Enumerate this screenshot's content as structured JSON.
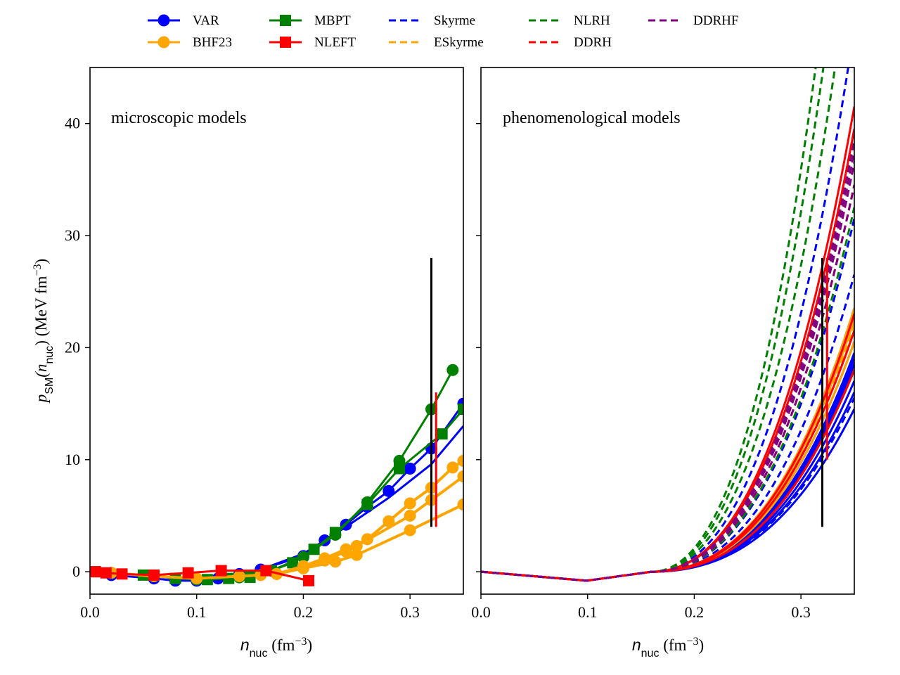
{
  "legend": {
    "entries": [
      {
        "label": "VAR",
        "color": "#0000ff",
        "style": "line-marker",
        "marker": "circle"
      },
      {
        "label": "BHF23",
        "color": "#ffa500",
        "style": "line-marker",
        "marker": "circle"
      },
      {
        "label": "MBPT",
        "color": "#008000",
        "style": "line-marker",
        "marker": "square"
      },
      {
        "label": "NLEFT",
        "color": "#ff0000",
        "style": "line-marker",
        "marker": "square"
      },
      {
        "label": "Skyrme",
        "color": "#0000ff",
        "style": "dashed"
      },
      {
        "label": "ESkyrme",
        "color": "#ffa500",
        "style": "dashed"
      },
      {
        "label": "NLRH",
        "color": "#008000",
        "style": "dashed"
      },
      {
        "label": "DDRH",
        "color": "#ff0000",
        "style": "dashed"
      },
      {
        "label": "DDRHF",
        "color": "#800080",
        "style": "dashed"
      }
    ],
    "placement": "top-center, above panels, 5 columns"
  },
  "y_label": {
    "main": "p",
    "sub1": "SM",
    "mid": "(n",
    "sub2": "nuc",
    "tail": ") (MeV fm",
    "sup": "−3",
    "end": ")"
  },
  "x_label": {
    "main": "n",
    "sub": "nuc",
    "mid": " (fm",
    "sup": "−3",
    "end": ")"
  },
  "chart_data": [
    {
      "type": "line",
      "panel": "left",
      "annotation": "microscopic models",
      "xlim": [
        0.0,
        0.35
      ],
      "ylim": [
        -2,
        45
      ],
      "xticks": [
        0.0,
        0.1,
        0.2,
        0.3
      ],
      "xtick_labels": [
        "0.0",
        "0.1",
        "0.2",
        "0.3"
      ],
      "yticks": [
        0,
        10,
        20,
        30,
        40
      ],
      "ytick_labels": [
        "0",
        "10",
        "20",
        "30",
        "40"
      ],
      "grid": false,
      "series": [
        {
          "name": "VAR",
          "color": "#0000ff",
          "marker": "circle",
          "x": [
            0.02,
            0.06,
            0.08,
            0.1,
            0.12,
            0.14,
            0.16,
            0.2,
            0.22,
            0.24,
            0.26,
            0.28,
            0.3,
            0.32,
            0.35
          ],
          "y": [
            -0.3,
            -0.6,
            -0.8,
            -0.8,
            -0.6,
            -0.2,
            0.2,
            1.4,
            2.8,
            4.2,
            5.8,
            7.2,
            9.2,
            11.0,
            15.0
          ]
        },
        {
          "name": "VAR",
          "color": "#0000ff",
          "marker": "none",
          "x": [
            0.16,
            0.2,
            0.24,
            0.28,
            0.32,
            0.35
          ],
          "y": [
            0.2,
            1.6,
            4.0,
            6.6,
            9.6,
            13.0
          ]
        },
        {
          "name": "MBPT",
          "color": "#008000",
          "marker": "circle",
          "x": [
            0.02,
            0.06,
            0.1,
            0.14,
            0.17,
            0.2,
            0.23,
            0.26,
            0.29,
            0.32,
            0.34
          ],
          "y": [
            -0.1,
            -0.4,
            -0.7,
            -0.5,
            0.1,
            1.3,
            3.3,
            6.2,
            9.9,
            14.5,
            18.0
          ]
        },
        {
          "name": "MBPT",
          "color": "#008000",
          "marker": "square",
          "x": [
            0.005,
            0.05,
            0.08,
            0.11,
            0.13,
            0.15,
            0.17,
            0.19,
            0.21,
            0.23,
            0.26,
            0.29,
            0.33,
            0.35
          ],
          "y": [
            0.0,
            -0.3,
            -0.6,
            -0.7,
            -0.6,
            -0.5,
            0.1,
            0.8,
            2.0,
            3.5,
            6.0,
            9.2,
            12.3,
            14.5
          ]
        },
        {
          "name": "BHF23",
          "color": "#ffa500",
          "marker": "circle",
          "x": [
            0.02,
            0.06,
            0.1,
            0.14,
            0.16,
            0.175,
            0.2,
            0.22,
            0.24,
            0.26,
            0.28,
            0.3,
            0.32,
            0.34,
            0.35
          ],
          "y": [
            -0.1,
            -0.4,
            -0.6,
            -0.4,
            -0.3,
            -0.2,
            0.5,
            1.2,
            2.0,
            2.9,
            4.5,
            6.1,
            7.5,
            9.3,
            9.9
          ]
        },
        {
          "name": "BHF23",
          "color": "#ffa500",
          "marker": "circle",
          "x": [
            0.175,
            0.2,
            0.22,
            0.24,
            0.25,
            0.3,
            0.32,
            0.35
          ],
          "y": [
            -0.2,
            0.4,
            1.0,
            1.8,
            2.3,
            5.0,
            6.4,
            8.5
          ]
        },
        {
          "name": "BHF23",
          "color": "#ffa500",
          "marker": "circle",
          "x": [
            0.175,
            0.2,
            0.23,
            0.25,
            0.3,
            0.35
          ],
          "y": [
            -0.2,
            0.3,
            0.9,
            1.5,
            3.7,
            6.0
          ]
        },
        {
          "name": "NLEFT",
          "color": "#ff0000",
          "marker": "square",
          "x": [
            0.005,
            0.015,
            0.03,
            0.06,
            0.092,
            0.123,
            0.165,
            0.205
          ],
          "y": [
            0.0,
            -0.1,
            -0.2,
            -0.3,
            -0.1,
            0.1,
            0.1,
            -0.8
          ]
        }
      ],
      "error_bars": [
        {
          "color": "#000000",
          "x": 0.32,
          "y_range": [
            4,
            28
          ]
        },
        {
          "color": "#ff0000",
          "x": 0.3245,
          "y_range": [
            4,
            16
          ]
        }
      ]
    },
    {
      "type": "line",
      "panel": "right",
      "annotation": "phenomenological models",
      "xlim": [
        0.0,
        0.35
      ],
      "ylim": [
        -2,
        45
      ],
      "xticks": [
        0.0,
        0.1,
        0.2,
        0.3
      ],
      "xtick_labels": [
        "0.0",
        "0.1",
        "0.2",
        "0.3"
      ],
      "yticks": [
        0,
        10,
        20,
        30,
        40
      ],
      "ytick_labels": [],
      "grid": false,
      "curve_model": {
        "saturation_density": 0.16,
        "low_density_linear_coeff": -8.0
      },
      "series": [
        {
          "name": "Skyrme",
          "color": "#0000ff",
          "style": "solid",
          "y_at_0.35": [
            13,
            14.5,
            15.5,
            16.5,
            17,
            17.5,
            18,
            19
          ]
        },
        {
          "name": "Skyrme",
          "color": "#0000ff",
          "style": "dashed",
          "y_at_0.35": [
            14,
            18,
            22,
            25,
            30,
            38,
            47
          ]
        },
        {
          "name": "ESkyrme",
          "color": "#ffa500",
          "style": "solid",
          "y_at_0.35": [
            19,
            20,
            21,
            22
          ]
        },
        {
          "name": "ESkyrme",
          "color": "#ffa500",
          "style": "dashed",
          "y_at_0.35": [
            20.5
          ]
        },
        {
          "name": "NLRH",
          "color": "#008000",
          "style": "dashed",
          "y_at_0.35": [
            31,
            56,
            66,
            74
          ]
        },
        {
          "name": "DDRH",
          "color": "#ff0000",
          "style": "solid",
          "y_at_0.35": [
            16.5,
            20,
            21.5,
            38,
            40
          ]
        },
        {
          "name": "DDRH",
          "color": "#ff0000",
          "style": "dashed",
          "y_at_0.35": [
            33
          ]
        },
        {
          "name": "DDRHF",
          "color": "#800080",
          "style": "dashed",
          "y_at_0.35": [
            33,
            35,
            36,
            37
          ]
        }
      ],
      "error_bars": [
        {
          "color": "#000000",
          "x": 0.32,
          "y_range": [
            4,
            28
          ]
        },
        {
          "color": "#ff0000",
          "x": 0.3245,
          "y_range": [
            10,
            28
          ]
        }
      ]
    }
  ]
}
